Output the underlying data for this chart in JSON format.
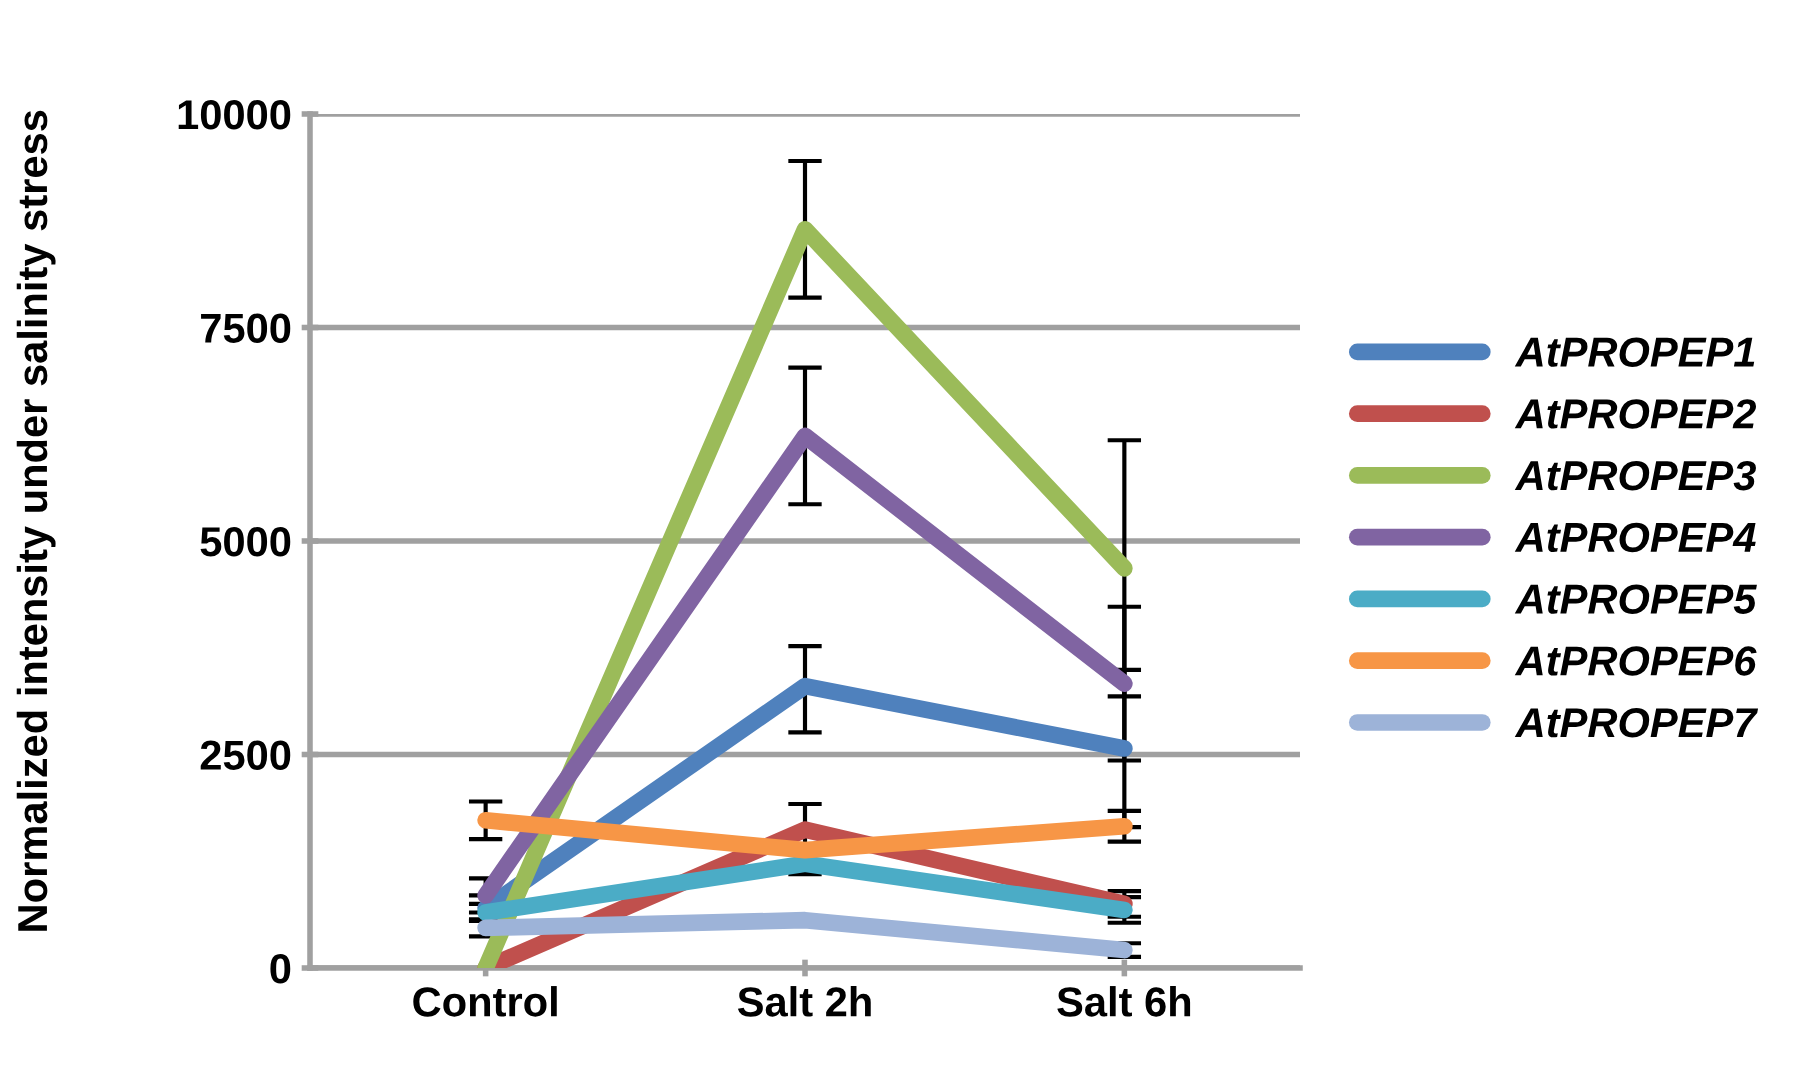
{
  "chart_data": {
    "type": "line",
    "ylabel": "Normalized intensity under salinity stress",
    "categories": [
      "Control",
      "Salt 2h",
      "Salt 6h"
    ],
    "series": [
      {
        "name": "AtPROPEP1",
        "color": "#4f81bd",
        "values": [
          700,
          3300,
          2570
        ],
        "errors": [
          150,
          [
            2760,
            3770
          ],
          920
        ]
      },
      {
        "name": "AtPROPEP2",
        "color": "#c0504d",
        "values": [
          0,
          1620,
          750
        ],
        "errors": [
          null,
          [
            1100,
            1920
          ],
          150
        ]
      },
      {
        "name": "AtPROPEP3",
        "color": "#9bbb59",
        "values": [
          0,
          8650,
          4680
        ],
        "errors": [
          null,
          [
            7850,
            9450
          ],
          1500
        ]
      },
      {
        "name": "AtPROPEP4",
        "color": "#8064a2",
        "values": [
          850,
          6230,
          3330
        ],
        "errors": [
          200,
          800,
          900
        ]
      },
      {
        "name": "AtPROPEP5",
        "color": "#4bacc6",
        "values": [
          650,
          1220,
          680
        ],
        "errors": [
          100,
          null,
          150
        ]
      },
      {
        "name": "AtPROPEP6",
        "color": "#f79646",
        "values": [
          1730,
          1380,
          1660
        ],
        "errors": [
          220,
          null,
          180
        ]
      },
      {
        "name": "AtPROPEP7",
        "color": "#9db3d8",
        "values": [
          470,
          560,
          210
        ],
        "errors": [
          100,
          null,
          80
        ]
      }
    ],
    "ylim": [
      0,
      10000
    ],
    "yticks": [
      0,
      2500,
      5000,
      7500,
      10000
    ],
    "grid": "y",
    "legend": "right",
    "marker": "none",
    "line_style": "solid"
  }
}
